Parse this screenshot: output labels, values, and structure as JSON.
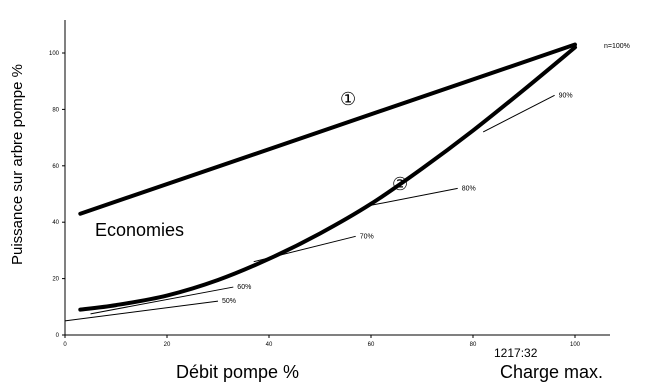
{
  "chart_data": {
    "type": "line",
    "title": "",
    "xlabel": "Débit pompe %",
    "ylabel": "Puissance sur arbre pompe %",
    "xlim": [
      0,
      100
    ],
    "ylim": [
      0,
      100
    ],
    "x_ticks": [
      "0",
      "20",
      "40",
      "60",
      "80",
      "100"
    ],
    "y_ticks": [
      "0",
      "20",
      "40",
      "60",
      "80",
      "100"
    ],
    "grid": false,
    "series": [
      {
        "name": "①",
        "x": [
          3,
          100
        ],
        "y": [
          43,
          103
        ]
      },
      {
        "name": "②",
        "x": [
          3,
          10,
          20,
          30,
          40,
          50,
          60,
          70,
          80,
          90,
          100
        ],
        "y": [
          9,
          10.6,
          14,
          19.5,
          27,
          36,
          46.5,
          59,
          72.5,
          87,
          102
        ]
      }
    ],
    "tangents": [
      {
        "label": "50%",
        "x1": 0,
        "y1": 5,
        "x2": 30,
        "y2": 12
      },
      {
        "label": "60%",
        "x1": 5,
        "y1": 7.5,
        "x2": 33,
        "y2": 17
      },
      {
        "label": "70%",
        "x1": 37,
        "y1": 26,
        "x2": 57,
        "y2": 35
      },
      {
        "label": "80%",
        "x1": 60,
        "y1": 46,
        "x2": 77,
        "y2": 52
      },
      {
        "label": "90%",
        "x1": 82,
        "y1": 72,
        "x2": 96,
        "y2": 85
      }
    ],
    "annotations": {
      "economies": "Economies",
      "speed": "n=100%",
      "marker1": "①",
      "marker2": "②"
    }
  },
  "footer": {
    "code": "1217:32",
    "charge_max": "Charge max."
  }
}
